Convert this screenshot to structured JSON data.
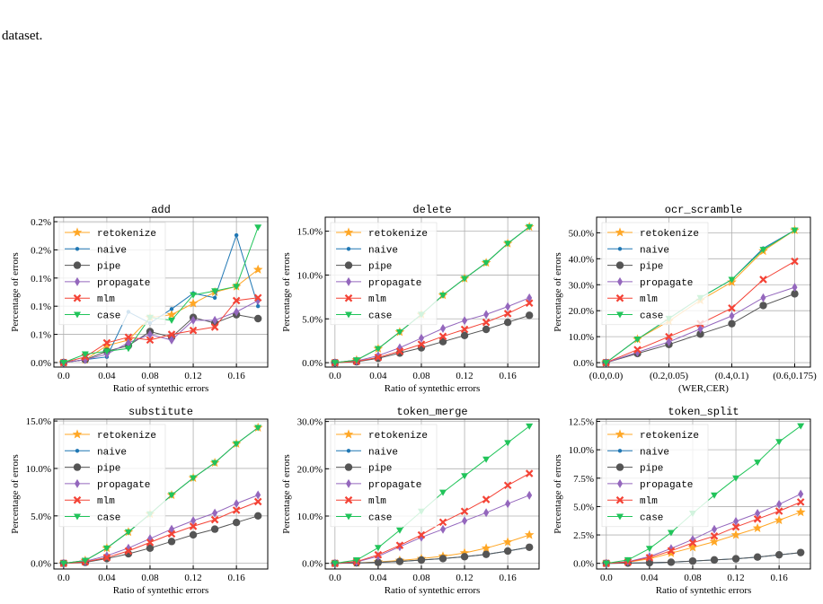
{
  "caption": "dataset.",
  "chart_data": [
    {
      "type": "line",
      "title": "add",
      "xlabel": "Ratio of syntethic errors",
      "ylabel": "Percentage of errors",
      "x": [
        0,
        0.02,
        0.04,
        0.06,
        0.08,
        0.1,
        0.12,
        0.14,
        0.16,
        0.18
      ],
      "xlim": [
        -0.009,
        0.189
      ],
      "xticks": [
        {
          "value": 0,
          "label": "0.0"
        },
        0.04,
        0.08,
        0.12,
        0.16
      ],
      "ylim": [
        -0.008,
        0.258
      ],
      "yticks": [
        {
          "value": 0,
          "label": "0.0%"
        },
        {
          "value": 0.05,
          "label": "0.1%"
        },
        {
          "value": 0.1,
          "label": "0.1%"
        },
        {
          "value": 0.15,
          "label": "0.1%"
        },
        {
          "value": 0.2,
          "label": "0.2%"
        },
        {
          "value": 0.25,
          "label": "0.2%"
        }
      ],
      "grid": true,
      "legend": "upper left",
      "series": [
        {
          "name": "retokenize",
          "color": "#ffa726",
          "marker": "star",
          "values": [
            0,
            0.005,
            0.03,
            0.04,
            0.08,
            0.085,
            0.105,
            0.125,
            0.135,
            0.165
          ]
        },
        {
          "name": "naive",
          "color": "#1f77b4",
          "marker": "dot",
          "values": [
            0,
            0.005,
            0.01,
            0.09,
            0.07,
            0.095,
            0.123,
            0.115,
            0.226,
            0.1
          ]
        },
        {
          "name": "pipe",
          "color": "#555555",
          "marker": "circle",
          "values": [
            0,
            0.005,
            0.02,
            0.03,
            0.055,
            0.045,
            0.08,
            0.07,
            0.085,
            0.078
          ]
        },
        {
          "name": "propagate",
          "color": "#9467bd",
          "marker": "diamond",
          "values": [
            0,
            0.005,
            0.015,
            0.035,
            0.05,
            0.04,
            0.075,
            0.075,
            0.09,
            0.11
          ]
        },
        {
          "name": "mlm",
          "color": "#f44336",
          "marker": "cross",
          "values": [
            0,
            0.01,
            0.035,
            0.045,
            0.04,
            0.05,
            0.057,
            0.063,
            0.11,
            0.115
          ]
        },
        {
          "name": "case",
          "color": "#21c45a",
          "marker": "tri",
          "values": [
            0,
            0.015,
            0.02,
            0.025,
            0.08,
            0.075,
            0.12,
            0.127,
            0.135,
            0.24
          ]
        }
      ]
    },
    {
      "type": "line",
      "title": "delete",
      "xlabel": "Ratio of syntethic errors",
      "ylabel": "Percentage of errors",
      "x": [
        0,
        0.02,
        0.04,
        0.06,
        0.08,
        0.1,
        0.12,
        0.14,
        0.16,
        0.18
      ],
      "xlim": [
        -0.009,
        0.189
      ],
      "xticks": [
        {
          "value": 0,
          "label": "0.0"
        },
        0.04,
        0.08,
        0.12,
        0.16
      ],
      "ylim": [
        -0.5,
        16.6
      ],
      "yticks": [
        {
          "value": 0,
          "label": "0.0%"
        },
        {
          "value": 5,
          "label": "5.0%"
        },
        {
          "value": 10,
          "label": "10.0%"
        },
        {
          "value": 15,
          "label": "15.0%"
        }
      ],
      "grid": true,
      "legend": "upper left",
      "series": [
        {
          "name": "retokenize",
          "color": "#ffa726",
          "marker": "star",
          "values": [
            0,
            0.3,
            1.6,
            3.5,
            5.5,
            7.7,
            9.6,
            11.4,
            13.6,
            15.5
          ]
        },
        {
          "name": "naive",
          "color": "#1f77b4",
          "marker": "dot",
          "values": [
            0,
            0.3,
            1.6,
            3.5,
            5.5,
            7.7,
            9.6,
            11.4,
            13.6,
            15.5
          ]
        },
        {
          "name": "pipe",
          "color": "#555555",
          "marker": "circle",
          "values": [
            0,
            0.1,
            0.5,
            1.1,
            1.7,
            2.4,
            3.1,
            3.8,
            4.6,
            5.4
          ]
        },
        {
          "name": "propagate",
          "color": "#9467bd",
          "marker": "diamond",
          "values": [
            0,
            0.2,
            0.8,
            1.7,
            2.8,
            3.9,
            4.8,
            5.5,
            6.4,
            7.4
          ]
        },
        {
          "name": "mlm",
          "color": "#f44336",
          "marker": "cross",
          "values": [
            0,
            0.15,
            0.6,
            1.3,
            2.1,
            3.0,
            3.8,
            4.6,
            5.6,
            6.8
          ]
        },
        {
          "name": "case",
          "color": "#21c45a",
          "marker": "tri",
          "values": [
            0,
            0.3,
            1.6,
            3.5,
            5.5,
            7.7,
            9.6,
            11.4,
            13.6,
            15.5
          ]
        }
      ]
    },
    {
      "type": "line",
      "title": "ocr_scramble",
      "xlabel": "(WER,CER)",
      "ylabel": "Percentage of errors",
      "x": [
        0,
        0.1,
        0.2,
        0.3,
        0.4,
        0.5,
        0.6
      ],
      "xlim": [
        -0.03,
        0.65
      ],
      "xticks": [
        {
          "value": 0,
          "label": "(0.0,0.0)"
        },
        {
          "value": 0.2,
          "label": "(0.2,0.05)"
        },
        {
          "value": 0.4,
          "label": "(0.4,0.1)"
        },
        {
          "value": 0.6,
          "label": "(0.6,0.175)"
        }
      ],
      "ylim": [
        -1.7,
        56
      ],
      "yticks": [
        {
          "value": 0,
          "label": "0.0%"
        },
        {
          "value": 10,
          "label": "10.0%"
        },
        {
          "value": 20,
          "label": "20.0%"
        },
        {
          "value": 30,
          "label": "30.0%"
        },
        {
          "value": 40,
          "label": "40.0%"
        },
        {
          "value": 50,
          "label": "50.0%"
        }
      ],
      "grid": true,
      "legend": "upper left",
      "series": [
        {
          "name": "retokenize",
          "color": "#ffa726",
          "marker": "star",
          "values": [
            0,
            9,
            16,
            24,
            31,
            43,
            51
          ]
        },
        {
          "name": "naive",
          "color": "#1f77b4",
          "marker": "dot",
          "values": [
            0,
            9,
            17,
            25,
            32,
            44,
            51
          ]
        },
        {
          "name": "pipe",
          "color": "#555555",
          "marker": "circle",
          "values": [
            0,
            3.5,
            7,
            11,
            15,
            22,
            26.5
          ]
        },
        {
          "name": "propagate",
          "color": "#9467bd",
          "marker": "diamond",
          "values": [
            0,
            4,
            8,
            13,
            18,
            25,
            29
          ]
        },
        {
          "name": "mlm",
          "color": "#f44336",
          "marker": "cross",
          "values": [
            0,
            5,
            10,
            15,
            21,
            32,
            39
          ]
        },
        {
          "name": "case",
          "color": "#21c45a",
          "marker": "tri",
          "values": [
            0,
            9,
            17,
            25,
            32,
            43.5,
            51
          ]
        }
      ]
    },
    {
      "type": "line",
      "title": "substitute",
      "xlabel": "Ratio of syntethic errors",
      "ylabel": "Percentage of errors",
      "x": [
        0,
        0.02,
        0.04,
        0.06,
        0.08,
        0.1,
        0.12,
        0.14,
        0.16,
        0.18
      ],
      "xlim": [
        -0.009,
        0.189
      ],
      "xticks": [
        {
          "value": 0,
          "label": "0.0"
        },
        0.04,
        0.08,
        0.12,
        0.16
      ],
      "ylim": [
        -0.6,
        15.2
      ],
      "yticks": [
        {
          "value": 0,
          "label": "0.0%"
        },
        {
          "value": 5,
          "label": "5.0%"
        },
        {
          "value": 10,
          "label": "10.0%"
        },
        {
          "value": 15,
          "label": "15.0%"
        }
      ],
      "grid": true,
      "legend": "upper left",
      "series": [
        {
          "name": "retokenize",
          "color": "#ffa726",
          "marker": "star",
          "values": [
            0,
            0.3,
            1.6,
            3.3,
            5.2,
            7.2,
            9.0,
            10.6,
            12.6,
            14.3
          ]
        },
        {
          "name": "naive",
          "color": "#1f77b4",
          "marker": "dot",
          "values": [
            0,
            0.3,
            1.6,
            3.3,
            5.2,
            7.2,
            9.0,
            10.6,
            12.6,
            14.3
          ]
        },
        {
          "name": "pipe",
          "color": "#555555",
          "marker": "circle",
          "values": [
            0,
            0.1,
            0.5,
            1.0,
            1.6,
            2.3,
            3.0,
            3.6,
            4.3,
            5.0
          ]
        },
        {
          "name": "propagate",
          "color": "#9467bd",
          "marker": "diamond",
          "values": [
            0,
            0.2,
            0.8,
            1.6,
            2.6,
            3.6,
            4.5,
            5.3,
            6.3,
            7.2
          ]
        },
        {
          "name": "mlm",
          "color": "#f44336",
          "marker": "cross",
          "values": [
            0,
            0.15,
            0.6,
            1.3,
            2.2,
            3.1,
            3.9,
            4.6,
            5.6,
            6.5
          ]
        },
        {
          "name": "case",
          "color": "#21c45a",
          "marker": "tri",
          "values": [
            0,
            0.3,
            1.6,
            3.3,
            5.2,
            7.2,
            9.0,
            10.6,
            12.6,
            14.3
          ]
        }
      ]
    },
    {
      "type": "line",
      "title": "token_merge",
      "xlabel": "Ratio of syntethic errors",
      "ylabel": "Percentage of errors",
      "x": [
        0,
        0.02,
        0.04,
        0.06,
        0.08,
        0.1,
        0.12,
        0.14,
        0.16,
        0.18
      ],
      "xlim": [
        -0.009,
        0.189
      ],
      "xticks": [
        {
          "value": 0,
          "label": "0.0"
        },
        0.04,
        0.08,
        0.12,
        0.16
      ],
      "ylim": [
        -1.2,
        30.5
      ],
      "yticks": [
        {
          "value": 0,
          "label": "0.0%"
        },
        {
          "value": 10,
          "label": "10.0%"
        },
        {
          "value": 20,
          "label": "20.0%"
        },
        {
          "value": 30,
          "label": "30.0%"
        }
      ],
      "grid": true,
      "legend": "upper left",
      "series": [
        {
          "name": "retokenize",
          "color": "#ffa726",
          "marker": "star",
          "values": [
            0,
            0.1,
            0.3,
            0.6,
            1.0,
            1.5,
            2.2,
            3.2,
            4.5,
            6.0
          ]
        },
        {
          "name": "naive",
          "color": "#1f77b4",
          "marker": "dot",
          "values": [
            0,
            0.1,
            0.2,
            0.4,
            0.7,
            1.0,
            1.4,
            1.9,
            2.6,
            3.4
          ]
        },
        {
          "name": "pipe",
          "color": "#555555",
          "marker": "circle",
          "values": [
            0,
            0.1,
            0.2,
            0.4,
            0.7,
            1.0,
            1.4,
            1.9,
            2.6,
            3.4
          ]
        },
        {
          "name": "propagate",
          "color": "#9467bd",
          "marker": "diamond",
          "values": [
            0,
            0.3,
            1.5,
            3.5,
            5.5,
            7.2,
            9.0,
            10.7,
            12.6,
            14.4
          ]
        },
        {
          "name": "mlm",
          "color": "#f44336",
          "marker": "cross",
          "values": [
            0,
            0.35,
            1.8,
            3.8,
            6.0,
            8.7,
            11,
            13.5,
            16.5,
            19
          ]
        },
        {
          "name": "case",
          "color": "#21c45a",
          "marker": "tri",
          "values": [
            0,
            0.7,
            3.3,
            7.0,
            11,
            15,
            18.5,
            22,
            25.5,
            29
          ]
        }
      ]
    },
    {
      "type": "line",
      "title": "token_split",
      "xlabel": "Ratio of syntethic errors",
      "ylabel": "Percentage of errors",
      "x": [
        0,
        0.02,
        0.04,
        0.06,
        0.08,
        0.1,
        0.12,
        0.14,
        0.16,
        0.18
      ],
      "xlim": [
        -0.009,
        0.189
      ],
      "xticks": [
        {
          "value": 0,
          "label": "0.0"
        },
        0.04,
        0.08,
        0.12,
        0.16
      ],
      "ylim": [
        -0.5,
        12.7
      ],
      "yticks": [
        {
          "value": 0,
          "label": "0.0%"
        },
        {
          "value": 2.5,
          "label": "2.5%"
        },
        {
          "value": 5,
          "label": "5.0%"
        },
        {
          "value": 7.5,
          "label": "7.5%"
        },
        {
          "value": 10,
          "label": "10.0%"
        },
        {
          "value": 12.5,
          "label": "12.5%"
        }
      ],
      "grid": true,
      "legend": "upper left",
      "series": [
        {
          "name": "retokenize",
          "color": "#ffa726",
          "marker": "star",
          "values": [
            0,
            0.1,
            0.4,
            0.9,
            1.4,
            1.9,
            2.5,
            3.1,
            3.8,
            4.5
          ]
        },
        {
          "name": "naive",
          "color": "#1f77b4",
          "marker": "dot",
          "values": [
            0,
            0.02,
            0.05,
            0.1,
            0.2,
            0.3,
            0.4,
            0.55,
            0.75,
            0.95
          ]
        },
        {
          "name": "pipe",
          "color": "#555555",
          "marker": "circle",
          "values": [
            0,
            0.02,
            0.05,
            0.1,
            0.2,
            0.3,
            0.4,
            0.55,
            0.75,
            0.95
          ]
        },
        {
          "name": "propagate",
          "color": "#9467bd",
          "marker": "diamond",
          "values": [
            0,
            0.15,
            0.6,
            1.3,
            2.1,
            3.0,
            3.7,
            4.4,
            5.2,
            6.1
          ]
        },
        {
          "name": "mlm",
          "color": "#f44336",
          "marker": "cross",
          "values": [
            0,
            0.12,
            0.5,
            1.1,
            1.8,
            2.4,
            3.2,
            3.9,
            4.6,
            5.4
          ]
        },
        {
          "name": "case",
          "color": "#21c45a",
          "marker": "tri",
          "values": [
            0,
            0.3,
            1.3,
            2.7,
            4.4,
            6.0,
            7.5,
            8.9,
            10.7,
            12.1
          ]
        }
      ]
    }
  ]
}
